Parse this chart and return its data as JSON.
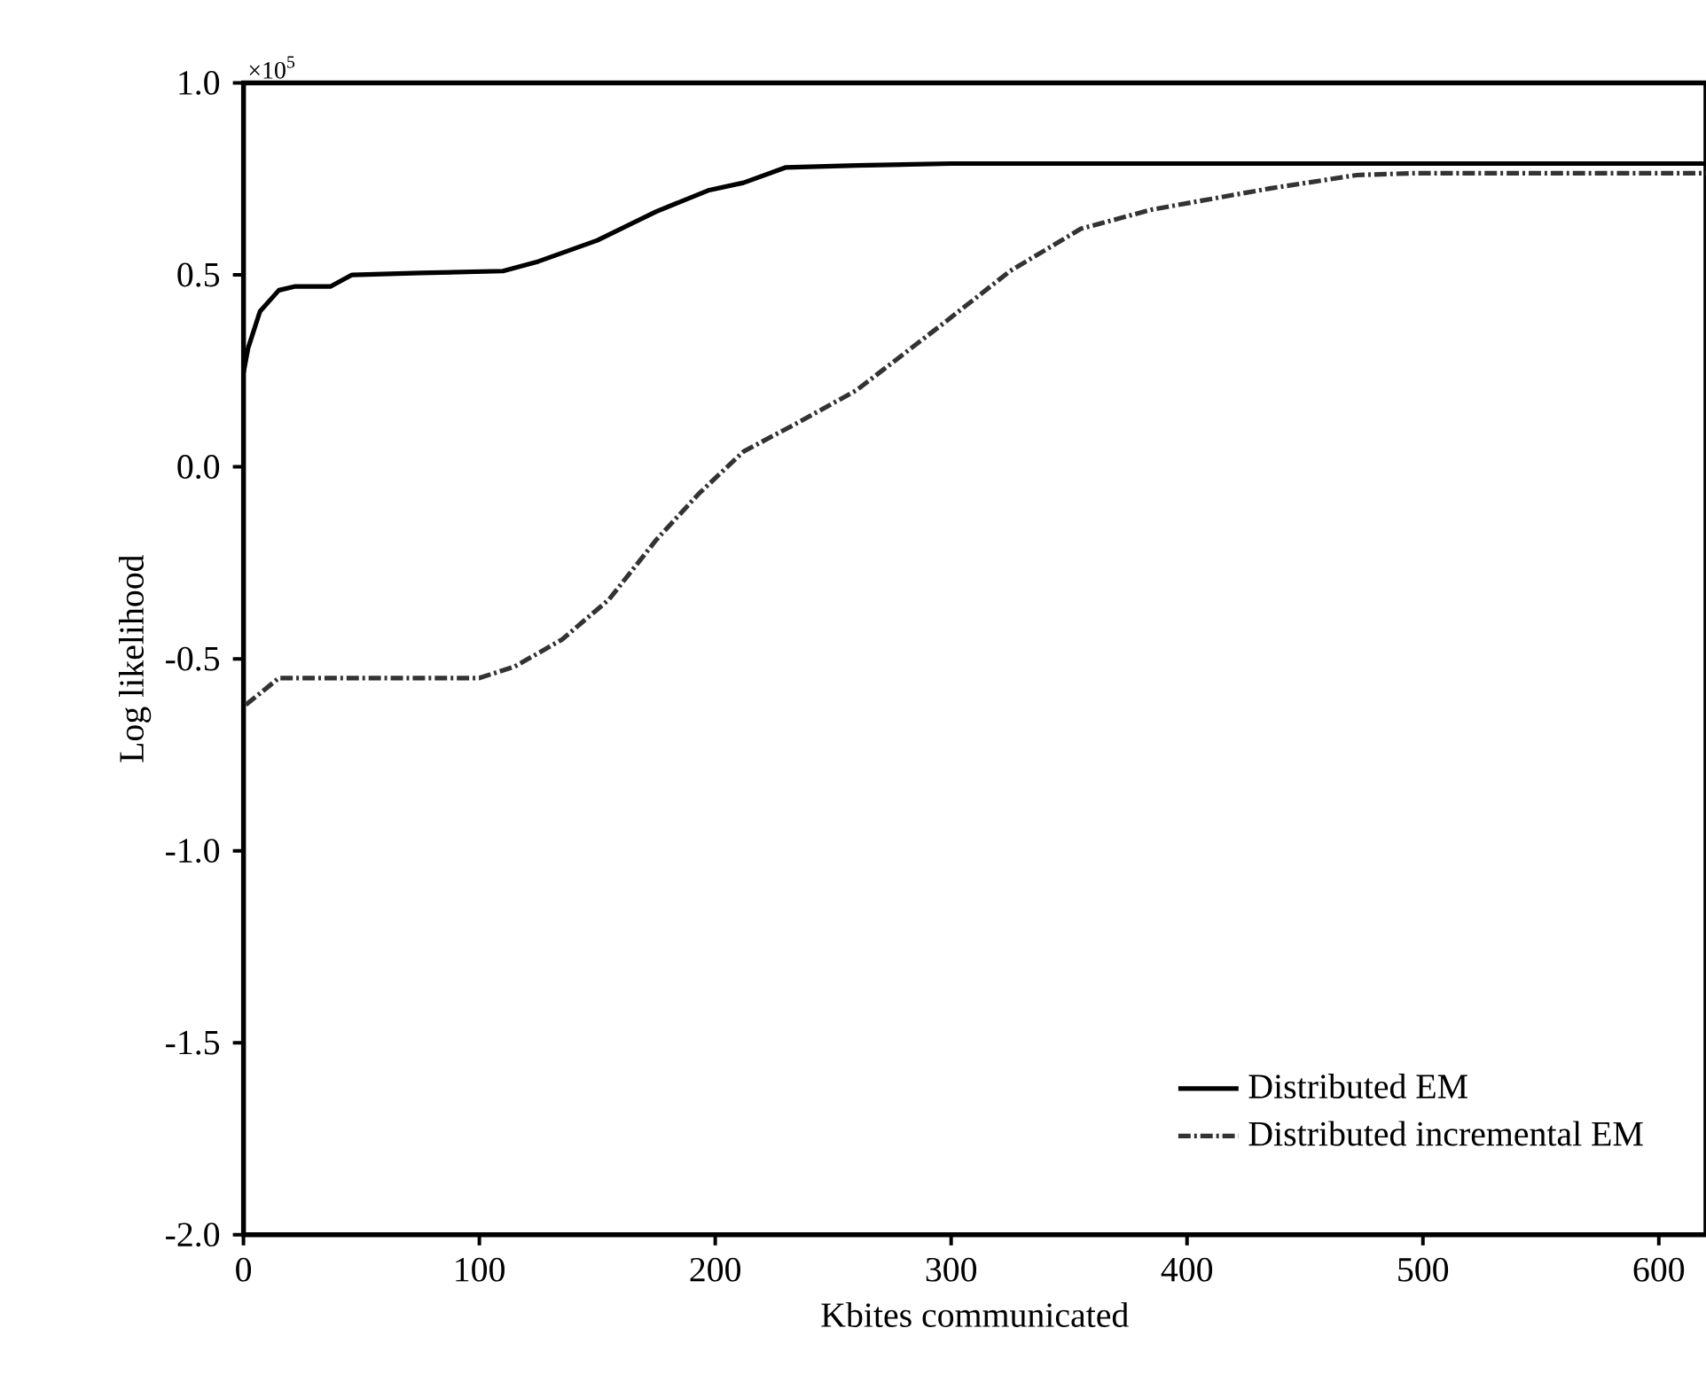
{
  "chart_data": {
    "type": "line",
    "xlabel": "Kbites communicated",
    "ylabel": "Log likelihood",
    "annotations": [
      "×10$^{5}$"
    ],
    "xlim": [
      0,
      620
    ],
    "xticks": [
      0,
      100,
      200,
      300,
      400,
      500,
      600
    ],
    "ylim": [
      -2.0,
      1.0
    ],
    "yticks": [
      {
        "value": -2.0,
        "label": "-2.0"
      },
      {
        "value": -1.5,
        "label": "-1.5"
      },
      {
        "value": -1.0,
        "label": "-1.0"
      },
      {
        "value": -0.5,
        "label": "-0.5"
      },
      {
        "value": 0.0,
        "label": "0.0"
      },
      {
        "value": 0.5,
        "label": "0.5"
      },
      {
        "value": 1.0,
        "label": "1.0"
      }
    ],
    "legend": "bottom right",
    "grid": false,
    "marker": "none",
    "series": [
      {
        "name": "Distributed EM",
        "color": "#000000",
        "line_style": "solid",
        "x": [
          0,
          2,
          7,
          15,
          22,
          37,
          46,
          75,
          110,
          125,
          150,
          175,
          197,
          212,
          230,
          260,
          300,
          400,
          500,
          620
        ],
        "values": [
          0.245,
          0.31,
          0.405,
          0.46,
          0.47,
          0.47,
          0.5,
          0.505,
          0.51,
          0.535,
          0.59,
          0.665,
          0.72,
          0.74,
          0.78,
          0.785,
          0.79,
          0.79,
          0.79,
          0.79
        ]
      },
      {
        "name": "Distributed incremental EM",
        "color": "#333333",
        "line_style": "dashdot",
        "x": [
          1,
          15,
          100,
          115,
          135,
          155,
          175,
          193,
          212,
          235,
          260,
          297,
          325,
          355,
          385,
          435,
          472,
          497,
          560,
          620
        ],
        "values": [
          -0.62,
          -0.55,
          -0.55,
          -0.52,
          -0.45,
          -0.345,
          -0.19,
          -0.07,
          0.04,
          0.115,
          0.2,
          0.375,
          0.51,
          0.62,
          0.67,
          0.725,
          0.76,
          0.765,
          0.765,
          0.765
        ]
      }
    ]
  }
}
